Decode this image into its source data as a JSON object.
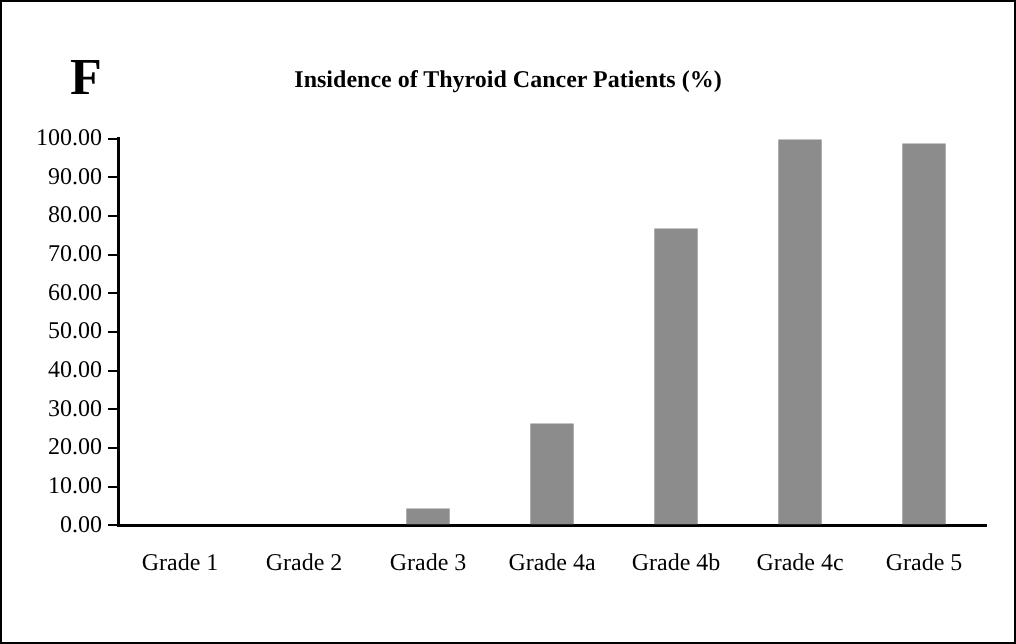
{
  "chart_data": {
    "type": "bar",
    "title": "Insidence of Thyroid Cancer Patients (%)",
    "annotations": [
      "F"
    ],
    "categories": [
      "Grade 1",
      "Grade 2",
      "Grade 3",
      "Grade 4a",
      "Grade 4b",
      "Grade 4c",
      "Grade 5"
    ],
    "values": [
      0,
      0,
      4.3,
      26.3,
      76.8,
      99.8,
      98.8
    ],
    "color": "#8c8c8c",
    "ylim": [
      0,
      100
    ],
    "yticks": [
      {
        "value": 0,
        "label": "0.00"
      },
      {
        "value": 10,
        "label": "10.00"
      },
      {
        "value": 20,
        "label": "20.00"
      },
      {
        "value": 30,
        "label": "30.00"
      },
      {
        "value": 40,
        "label": "40.00"
      },
      {
        "value": 50,
        "label": "50.00"
      },
      {
        "value": 60,
        "label": "60.00"
      },
      {
        "value": 70,
        "label": "70.00"
      },
      {
        "value": 80,
        "label": "80.00"
      },
      {
        "value": 90,
        "label": "90.00"
      },
      {
        "value": 100,
        "label": "100.00"
      }
    ],
    "grid": false,
    "legend": false
  }
}
